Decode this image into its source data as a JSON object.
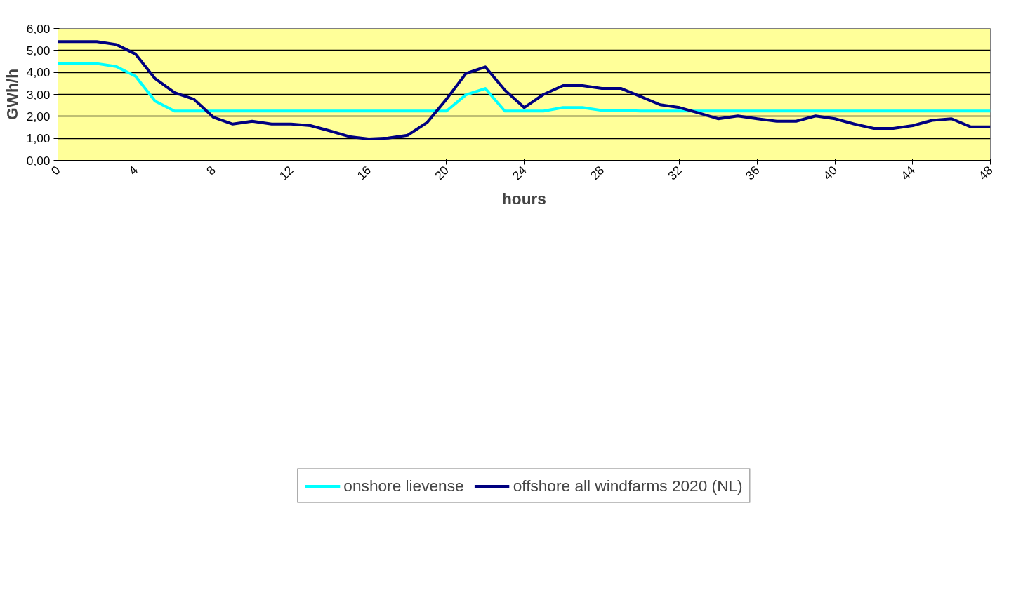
{
  "chart_data": {
    "type": "line",
    "xlabel": "hours",
    "ylabel": "GWh/h",
    "x": [
      0,
      1,
      2,
      3,
      4,
      5,
      6,
      7,
      8,
      9,
      10,
      11,
      12,
      13,
      14,
      15,
      16,
      17,
      18,
      19,
      20,
      21,
      22,
      23,
      24,
      25,
      26,
      27,
      28,
      29,
      30,
      31,
      32,
      33,
      34,
      35,
      36,
      37,
      38,
      39,
      40,
      41,
      42,
      43,
      44,
      45,
      46,
      47,
      48
    ],
    "series": [
      {
        "name": "onshore lievense",
        "color": "#00ffff",
        "values": [
          4.4,
          4.4,
          4.4,
          4.27,
          3.82,
          2.7,
          2.24,
          2.24,
          2.24,
          2.24,
          2.24,
          2.24,
          2.24,
          2.24,
          2.24,
          2.24,
          2.24,
          2.24,
          2.24,
          2.24,
          2.24,
          2.98,
          3.27,
          2.24,
          2.24,
          2.24,
          2.4,
          2.4,
          2.27,
          2.27,
          2.24,
          2.24,
          2.24,
          2.24,
          2.24,
          2.24,
          2.24,
          2.24,
          2.24,
          2.24,
          2.24,
          2.24,
          2.24,
          2.24,
          2.24,
          2.24,
          2.24,
          2.24,
          2.24
        ]
      },
      {
        "name": "offshore all windfarms 2020 (NL)",
        "color": "#000080",
        "values": [
          5.4,
          5.4,
          5.4,
          5.27,
          4.83,
          3.72,
          3.08,
          2.78,
          1.96,
          1.65,
          1.78,
          1.65,
          1.65,
          1.58,
          1.34,
          1.08,
          0.97,
          1.01,
          1.14,
          1.72,
          2.78,
          3.95,
          4.25,
          3.2,
          2.4,
          3.0,
          3.4,
          3.4,
          3.27,
          3.27,
          2.9,
          2.53,
          2.4,
          2.15,
          1.89,
          2.02,
          1.89,
          1.78,
          1.78,
          2.02,
          1.89,
          1.65,
          1.45,
          1.45,
          1.58,
          1.82,
          1.89,
          1.52,
          1.52
        ]
      }
    ],
    "xlim": [
      0,
      48
    ],
    "xticks": [
      0,
      4,
      8,
      12,
      16,
      20,
      24,
      28,
      32,
      36,
      40,
      44,
      48
    ],
    "ylim": [
      0,
      6
    ],
    "yticks": [
      {
        "value": 0,
        "label": "0,00"
      },
      {
        "value": 1,
        "label": "1,00"
      },
      {
        "value": 2,
        "label": "2,00"
      },
      {
        "value": 3,
        "label": "3,00"
      },
      {
        "value": 4,
        "label": "4,00"
      },
      {
        "value": 5,
        "label": "5,00"
      },
      {
        "value": 6,
        "label": "6,00"
      }
    ],
    "grid": "y",
    "legend": "bottom",
    "marker": "none",
    "line_style": "solid"
  }
}
